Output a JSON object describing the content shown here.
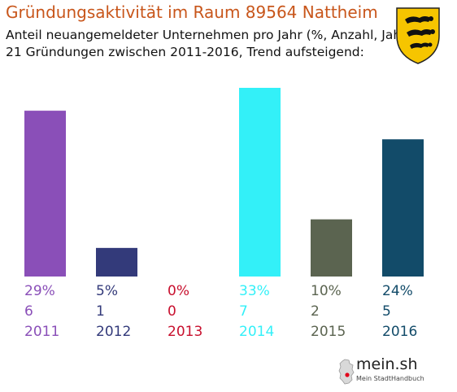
{
  "header": {
    "title": "Gründungsaktivität im Raum 89564 Nattheim",
    "subtitle_line1": "Anteil neuangemeldeter Unternehmen pro Jahr (%, Anzahl, Jahr)",
    "subtitle_line2": "21 Gründungen zwischen 2011-2016, Trend aufsteigend:"
  },
  "colors": {
    "title": "#c8561b",
    "accent_brand": "#e2001a"
  },
  "icons": {
    "crest": "baden-wuerttemberg-coat-of-arms-icon",
    "brand": "germany-map-icon"
  },
  "chart_data": {
    "type": "bar",
    "categories": [
      "2011",
      "2012",
      "2013",
      "2014",
      "2015",
      "2016"
    ],
    "series": [
      {
        "values": [
          29,
          5,
          0,
          33,
          10,
          24
        ],
        "counts": [
          6,
          1,
          0,
          7,
          2,
          5
        ],
        "value_labels": [
          "29%",
          "5%",
          "0%",
          "33%",
          "10%",
          "24%"
        ],
        "count_labels": [
          "6",
          "1",
          "0",
          "7",
          "2",
          "5"
        ]
      }
    ],
    "colors": [
      "#8a4fb8",
      "#333a7a",
      "#c8102e",
      "#33f0f8",
      "#5b6450",
      "#124b69"
    ],
    "ylim": [
      0,
      33
    ],
    "grid": false,
    "legend": "none",
    "title": "",
    "xlabel": "",
    "ylabel": ""
  },
  "brand": {
    "name": "mein.sh",
    "tagline": "Mein StadtHandbuch"
  }
}
